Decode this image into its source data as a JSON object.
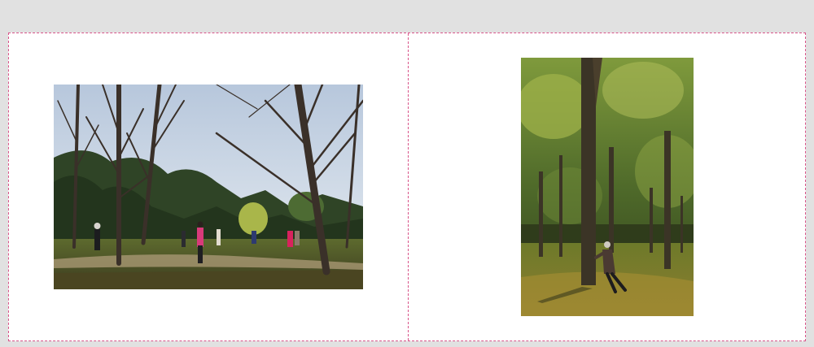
{
  "spread": {
    "pages": [
      {
        "side": "left",
        "photo": "park-trees-tai-chi-group"
      },
      {
        "side": "right",
        "photo": "forest-tree-stretching-person"
      }
    ]
  },
  "colors": {
    "workspace": "#e1e1e1",
    "page": "#ffffff",
    "guide": "#d9558a"
  }
}
